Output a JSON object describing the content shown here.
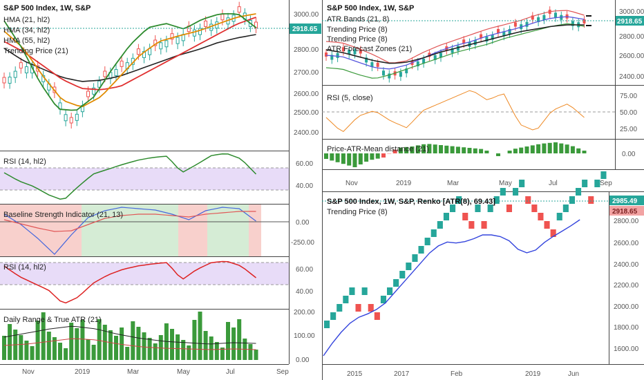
{
  "colors": {
    "bull": "#26a69a",
    "bear": "#ef5350",
    "hma21": "#2e8b2e",
    "hma34": "#e08a00",
    "hma55": "#e03030",
    "trend": "#222222",
    "rsi_fill": "#e8dcf8",
    "band_red": "#f8d0cc",
    "band_green": "#d5ecd5",
    "price_tag": "#26a69a",
    "price_tag_red": "#f2a3a3"
  },
  "left": {
    "main": {
      "title": "S&P 500 Index, 1W, S&P",
      "legend": [
        "HMA (21, hl2)",
        "HMA (34, hl2)",
        "HMA (55, hl2)",
        "Trending Price (21)"
      ],
      "price_tag": "2918.65",
      "y_ticks": [
        "3000.00",
        "2900.00",
        "2800.00",
        "2700.00",
        "2600.00",
        "2500.00",
        "2400.00"
      ]
    },
    "rsi1": {
      "title": "RSI (14, hl2)",
      "y_ticks": [
        "60.00",
        "40.00"
      ]
    },
    "baseline": {
      "title": "Baseline Strength Indicator (21, 13)",
      "y_ticks": [
        "0.00",
        "-250.00"
      ]
    },
    "rsi2": {
      "title": "RSI (14, hl2)",
      "y_ticks": [
        "60.00",
        "40.00"
      ]
    },
    "range": {
      "title": "Daily Range & True ATR (21)",
      "y_ticks": [
        "200.00",
        "100.00",
        "0.00"
      ]
    },
    "x_ticks": [
      "Nov",
      "2019",
      "Mar",
      "May",
      "Jul",
      "Sep"
    ]
  },
  "right_top": {
    "main": {
      "title": "S&P 500 Index, 1W, S&P",
      "legend": [
        "ATR Bands (21, 8)",
        "Trending Price (8)",
        "Trending Price (8)",
        "ATR Forecast Zones (21)"
      ],
      "price_tag": "2918.65",
      "y_ticks": [
        "3000.00",
        "2800.00",
        "2600.00",
        "2400.00"
      ]
    },
    "rsi": {
      "title": "RSI (5, close)",
      "y_ticks": [
        "75.00",
        "50.00",
        "25.00"
      ]
    },
    "dist": {
      "title": "Price-ATR-Mean distance (21)",
      "y_ticks": [
        "0.00"
      ]
    },
    "x_ticks": [
      "Nov",
      "2019",
      "Mar",
      "May",
      "Jul",
      "Sep"
    ]
  },
  "right_bottom": {
    "title": "S&P 500 Index, 1W, S&P, Renko [ATR(8), 69.43]",
    "legend": [
      "Trending Price (8)"
    ],
    "price_tag_1": "2985.49",
    "price_tag_2": "2918.65",
    "y_ticks": [
      "2800.00",
      "2600.00",
      "2400.00",
      "2200.00",
      "2000.00",
      "1800.00",
      "1600.00"
    ],
    "x_ticks": [
      "2015",
      "2017",
      "Feb",
      "2019",
      "Jun"
    ]
  }
}
